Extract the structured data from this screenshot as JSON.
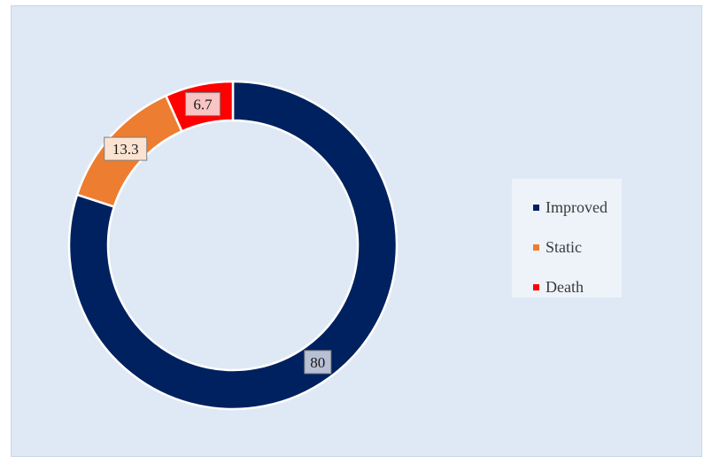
{
  "chart_data": {
    "type": "pie",
    "donut": true,
    "categories": [
      "Improved",
      "Static",
      "Death"
    ],
    "values": [
      80,
      13.3,
      6.7
    ],
    "labels": [
      "80",
      "13.3",
      "6.7"
    ],
    "colors": [
      "#00215f",
      "#ed7d31",
      "#ff0000"
    ],
    "label_backgrounds": [
      "#b8c0d4",
      "#fbe3d2",
      "#f8c4c4"
    ],
    "legend_position": "right"
  }
}
